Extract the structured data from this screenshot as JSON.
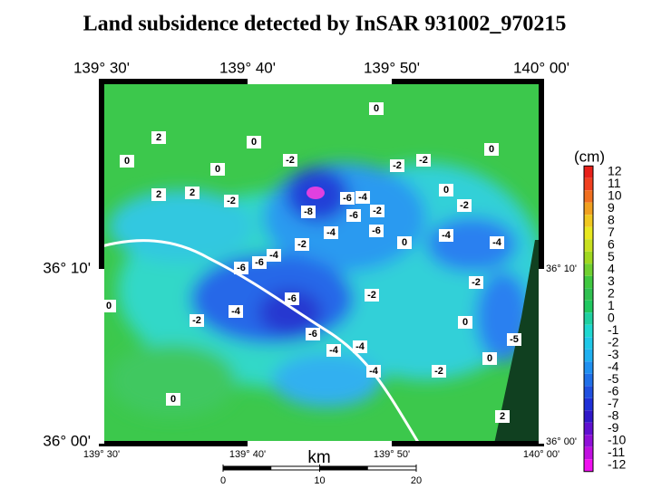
{
  "title": "Land subsidence detected by InSAR  931002_970215",
  "top_labels": [
    "139° 30'",
    "139° 40'",
    "139° 50'",
    "140° 00'"
  ],
  "bottom_labels": [
    "139° 30'",
    "139° 40'",
    "139° 50'",
    "140° 00'"
  ],
  "left_labels": [
    "36° 10'",
    "36° 00'"
  ],
  "right_labels": [
    "36° 10'",
    "36° 00'"
  ],
  "colorbar": {
    "unit": "(cm)",
    "ticks": [
      12,
      11,
      10,
      9,
      8,
      7,
      6,
      5,
      4,
      3,
      2,
      1,
      0,
      -1,
      -2,
      -3,
      -4,
      -5,
      -6,
      -7,
      -8,
      -9,
      -10,
      -11,
      -12
    ],
    "colors": [
      "#e8201a",
      "#f04020",
      "#f07020",
      "#f0a020",
      "#f0c820",
      "#e8e820",
      "#c8e020",
      "#a0d820",
      "#70d030",
      "#40c840",
      "#30c050",
      "#20c860",
      "#20d0a0",
      "#20d8d0",
      "#20c8e8",
      "#20b0f0",
      "#2090f0",
      "#2070e8",
      "#2050e0",
      "#2030d8",
      "#3018c8",
      "#6010d0",
      "#9010d8",
      "#c010e0",
      "#f010f0"
    ]
  },
  "scale": {
    "unit": "km",
    "ticks": [
      0,
      10,
      20
    ]
  },
  "contour_labels": [
    "0",
    "2",
    "0",
    "0",
    "-2",
    "0",
    "2",
    "2",
    "-2",
    "-8",
    "-6",
    "-4",
    "-6",
    "-2",
    "-4",
    "-6",
    "-2",
    "0",
    "-2",
    "-2",
    "0",
    "-2",
    "-4",
    "-4",
    "0",
    "-6",
    "-6",
    "-4",
    "-6",
    "-2",
    "-4",
    "-2",
    "0",
    "-6",
    "-4",
    "-4",
    "-4",
    "-2",
    "0",
    "-2",
    "0",
    "0",
    "2",
    "-5"
  ]
}
